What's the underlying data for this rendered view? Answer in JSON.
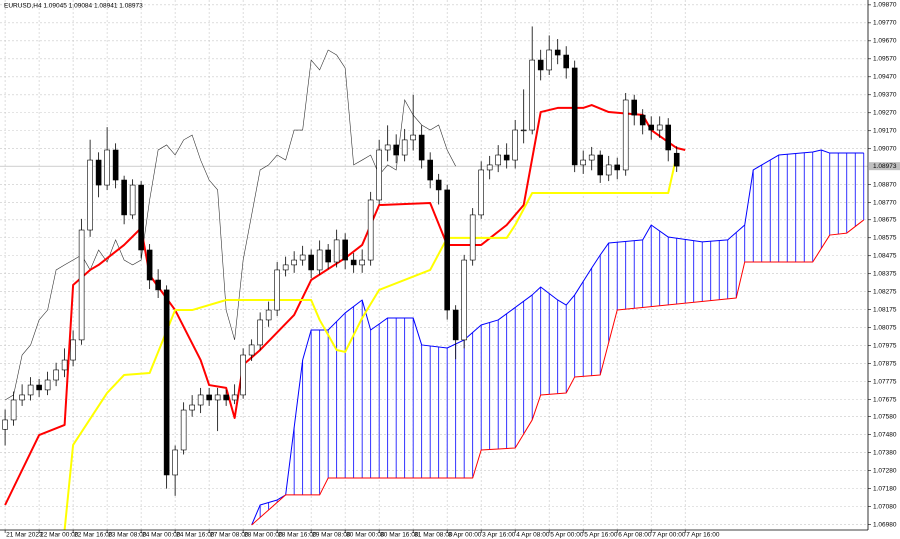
{
  "chart_data": {
    "type": "candlestick",
    "title": "EURUSD,H4 1.09045 1.09084 1.08941 1.08973",
    "xlim": [
      -0.6,
      101.5
    ],
    "ylim": [
      1.0695,
      1.09897
    ],
    "grid": true,
    "up_color": "#ffffff",
    "down_color": "#000000",
    "xticks": [
      {
        "value": 0,
        "label": "21 Mar 2023"
      },
      {
        "value": 4,
        "label": "22 Mar 00:00"
      },
      {
        "value": 8,
        "label": "22 Mar 16:00"
      },
      {
        "value": 12,
        "label": "23 Mar 08:00"
      },
      {
        "value": 16,
        "label": "24 Mar 00:00"
      },
      {
        "value": 20,
        "label": "24 Mar 16:00"
      },
      {
        "value": 24,
        "label": "27 Mar 08:00"
      },
      {
        "value": 28,
        "label": "28 Mar 00:00"
      },
      {
        "value": 32,
        "label": "28 Mar 16:00"
      },
      {
        "value": 36,
        "label": "29 Mar 08:00"
      },
      {
        "value": 40,
        "label": "30 Mar 00:00"
      },
      {
        "value": 44,
        "label": "30 Mar 16:00"
      },
      {
        "value": 48,
        "label": "31 Mar 08:00"
      },
      {
        "value": 52,
        "label": "3 Apr 00:00"
      },
      {
        "value": 56,
        "label": "3 Apr 16:00"
      },
      {
        "value": 60,
        "label": "4 Apr 08:00"
      },
      {
        "value": 64,
        "label": "5 Apr 00:00"
      },
      {
        "value": 68,
        "label": "5 Apr 16:00"
      },
      {
        "value": 72,
        "label": "6 Apr 08:00"
      },
      {
        "value": 76,
        "label": "7 Apr 00:00"
      },
      {
        "value": 80,
        "label": "7 Apr 16:00"
      }
    ],
    "yticks": [
      {
        "value": 1.0987,
        "label": "1.09870"
      },
      {
        "value": 1.0977,
        "label": "1.09770"
      },
      {
        "value": 1.0967,
        "label": "1.09670"
      },
      {
        "value": 1.0957,
        "label": "1.09570"
      },
      {
        "value": 1.0947,
        "label": "1.09470"
      },
      {
        "value": 1.0937,
        "label": "1.09370"
      },
      {
        "value": 1.0927,
        "label": "1.09270"
      },
      {
        "value": 1.0917,
        "label": "1.09170"
      },
      {
        "value": 1.0907,
        "label": "1.09070"
      },
      {
        "value": 1.0887,
        "label": "1.08870"
      },
      {
        "value": 1.0877,
        "label": "1.08770"
      },
      1.08675,
      1.08575,
      1.08475,
      1.08375,
      1.08275,
      1.08175,
      1.08075,
      1.07975,
      1.07875,
      1.07775,
      1.07675,
      {
        "value": 1.0758,
        "label": "1.07580"
      },
      {
        "value": 1.0748,
        "label": "1.07480"
      },
      {
        "value": 1.0738,
        "label": "1.07380"
      },
      {
        "value": 1.0728,
        "label": "1.07280"
      },
      {
        "value": 1.0718,
        "label": "1.07180"
      },
      {
        "value": 1.0708,
        "label": "1.07080"
      },
      {
        "value": 1.0698,
        "label": "1.06980"
      }
    ],
    "current_price": 1.08973,
    "candles": {
      "open": [
        1.0751,
        1.07562,
        1.07673,
        1.07701,
        1.07756,
        1.07729,
        1.07784,
        1.0784,
        1.07895,
        1.08007,
        1.08618,
        1.09007,
        1.08868,
        1.09063,
        1.08896,
        1.08702,
        1.08868,
        1.08507,
        1.0834,
        1.08285,
        1.07256,
        1.07395,
        1.07617,
        1.07645,
        1.07701,
        1.07673,
        1.07701,
        1.07673,
        1.07701,
        1.07923,
        1.07979,
        1.08118,
        1.08173,
        1.08396,
        1.08424,
        1.08451,
        1.08479,
        1.08396,
        1.08507,
        1.0844,
        1.08563,
        1.08451,
        1.08424,
        1.08451,
        1.08785,
        1.09063,
        1.09091,
        1.09035,
        1.09119,
        1.09146,
        1.09007,
        1.08896,
        1.08841,
        1.08173,
        1.08007,
        1.08451,
        1.08702,
        1.08952,
        1.0898,
        1.09035,
        1.09007,
        1.09174,
        1.09174,
        1.09563,
        1.09508,
        1.09619,
        1.09591,
        1.09519,
        1.0898,
        1.09007,
        1.09035,
        1.08924,
        1.0898,
        1.08952,
        1.09341,
        1.09257,
        1.09202,
        1.09174,
        1.09202,
        1.09045
      ],
      "high": [
        1.0762,
        1.0772,
        1.0776,
        1.078,
        1.0779,
        1.0783,
        1.0788,
        1.0796,
        1.0806,
        1.0868,
        1.0912,
        1.0905,
        1.0919,
        1.091,
        1.0892,
        1.089,
        1.0889,
        1.0854,
        1.084,
        1.0831,
        1.0742,
        1.0766,
        1.077,
        1.0774,
        1.0774,
        1.0774,
        1.0773,
        1.0776,
        1.0796,
        1.0801,
        1.0816,
        1.0822,
        1.0844,
        1.0847,
        1.085,
        1.0853,
        1.0851,
        1.0856,
        1.0854,
        1.0862,
        1.086,
        1.0849,
        1.0851,
        1.0883,
        1.0912,
        1.092,
        1.0915,
        1.0918,
        1.0937,
        1.092,
        1.0905,
        1.0893,
        1.0887,
        1.082,
        1.0848,
        1.0874,
        1.09,
        1.0903,
        1.0909,
        1.091,
        1.0923,
        1.094,
        1.0975,
        1.0962,
        1.097,
        1.0968,
        1.0964,
        1.0956,
        1.0906,
        1.0908,
        1.0906,
        1.0903,
        1.0902,
        1.0938,
        1.0937,
        1.0929,
        1.0925,
        1.0925,
        1.0924,
        1.09084
      ],
      "low": [
        1.0742,
        1.0753,
        1.0764,
        1.0767,
        1.0769,
        1.077,
        1.0775,
        1.078,
        1.0786,
        1.0798,
        1.0858,
        1.088,
        1.0884,
        1.0885,
        1.0865,
        1.0868,
        1.0846,
        1.0829,
        1.0824,
        1.0718,
        1.0714,
        1.0737,
        1.0758,
        1.076,
        1.0764,
        1.075,
        1.0764,
        1.0765,
        1.0768,
        1.0789,
        1.0795,
        1.0808,
        1.0814,
        1.0836,
        1.0838,
        1.0842,
        1.0835,
        1.0837,
        1.084,
        1.0841,
        1.084,
        1.0838,
        1.0838,
        1.0842,
        1.0876,
        1.09,
        1.0899,
        1.09,
        1.0906,
        1.0896,
        1.0885,
        1.0876,
        1.0812,
        1.079,
        1.0796,
        1.0842,
        1.0868,
        1.089,
        1.0894,
        1.0896,
        1.0896,
        1.091,
        1.0915,
        1.0945,
        1.0948,
        1.0954,
        1.0946,
        1.0894,
        1.0893,
        1.0895,
        1.0888,
        1.0889,
        1.089,
        1.0892,
        1.092,
        1.0915,
        1.0912,
        1.0913,
        1.09,
        1.08941
      ],
      "close": [
        1.07562,
        1.07673,
        1.07701,
        1.07756,
        1.07729,
        1.07784,
        1.0784,
        1.07895,
        1.08007,
        1.08618,
        1.09007,
        1.08868,
        1.09063,
        1.08896,
        1.08702,
        1.08868,
        1.08507,
        1.0834,
        1.08285,
        1.07256,
        1.07395,
        1.07617,
        1.07645,
        1.07701,
        1.07673,
        1.07701,
        1.07673,
        1.07701,
        1.07923,
        1.07979,
        1.08118,
        1.08173,
        1.08396,
        1.08424,
        1.08451,
        1.08479,
        1.08396,
        1.08507,
        1.0844,
        1.08563,
        1.08451,
        1.08424,
        1.08451,
        1.08785,
        1.09063,
        1.09091,
        1.09035,
        1.09119,
        1.09146,
        1.09007,
        1.08896,
        1.08841,
        1.08173,
        1.08007,
        1.08451,
        1.08702,
        1.08952,
        1.0898,
        1.09035,
        1.09007,
        1.09174,
        1.09174,
        1.09563,
        1.09508,
        1.09619,
        1.09591,
        1.09519,
        1.0898,
        1.09007,
        1.09035,
        1.08924,
        1.0898,
        1.08952,
        1.09341,
        1.09257,
        1.09202,
        1.09174,
        1.09202,
        1.09063,
        1.08973
      ]
    },
    "chikou": {
      "shift": 26,
      "color": "#333333"
    },
    "series": [
      {
        "color": "#ff0000",
        "width": 2,
        "x": [
          0,
          4,
          7,
          8,
          10,
          11,
          14,
          16,
          17,
          20,
          23,
          24,
          26,
          27,
          28,
          30,
          34,
          36,
          40,
          42,
          44,
          50,
          52,
          56,
          59,
          61,
          63,
          65,
          68,
          69,
          71,
          75,
          76,
          79,
          80
        ],
        "values": [
          1.07089,
          1.07478,
          1.07534,
          1.08312,
          1.08396,
          1.08424,
          1.08535,
          1.08629,
          1.08368,
          1.08173,
          1.07895,
          1.07756,
          1.0774,
          1.07573,
          1.07868,
          1.07951,
          1.08146,
          1.0834,
          1.08462,
          1.08535,
          1.08757,
          1.08768,
          1.08535,
          1.08535,
          1.08646,
          1.08757,
          1.09274,
          1.09297,
          1.09297,
          1.09313,
          1.09274,
          1.09258,
          1.09174,
          1.09074,
          1.09063
        ]
      },
      {
        "color": "#ffff00",
        "width": 2,
        "x": [
          7,
          8,
          12,
          14,
          17,
          20,
          22,
          26,
          36,
          37,
          39,
          40,
          42,
          44,
          50,
          52,
          59,
          60,
          62,
          78,
          79
        ],
        "values": [
          1.0695,
          1.07423,
          1.07712,
          1.07812,
          1.07823,
          1.08173,
          1.08173,
          1.08229,
          1.08229,
          1.08118,
          1.07951,
          1.0794,
          1.08129,
          1.08285,
          1.08396,
          1.08574,
          1.08574,
          1.08646,
          1.08824,
          1.08824,
          1.09035
        ]
      }
    ],
    "cloud": {
      "a": {
        "color": "#0000ff",
        "x": [
          29,
          30,
          32,
          33,
          35,
          36,
          38,
          40,
          42,
          43,
          45,
          48,
          49,
          52,
          54,
          56,
          58,
          62,
          63,
          65,
          66,
          67,
          69,
          70,
          71,
          75,
          76,
          78,
          82,
          85,
          87,
          88,
          91,
          95,
          96,
          97,
          101
        ],
        "values": [
          1.06978,
          1.07089,
          1.07117,
          1.07145,
          1.07895,
          1.08062,
          1.08062,
          1.08157,
          1.08229,
          1.08062,
          1.08129,
          1.08129,
          1.07979,
          1.07962,
          1.08007,
          1.0809,
          1.08118,
          1.08257,
          1.08301,
          1.08229,
          1.08201,
          1.08257,
          1.08407,
          1.08479,
          1.08546,
          1.08563,
          1.08646,
          1.08579,
          1.08552,
          1.08563,
          1.08646,
          1.08952,
          1.09035,
          1.09052,
          1.09063,
          1.09046,
          1.09046
        ]
      },
      "b": {
        "color": "#ff0000",
        "x": [
          29,
          33,
          37,
          38,
          55,
          56,
          60,
          62,
          63,
          66,
          67,
          70,
          72,
          86,
          87,
          95,
          97,
          99,
          101
        ],
        "values": [
          1.06978,
          1.07145,
          1.07145,
          1.07239,
          1.07239,
          1.07395,
          1.07406,
          1.07562,
          1.07701,
          1.07712,
          1.07801,
          1.07812,
          1.08173,
          1.0824,
          1.0844,
          1.0844,
          1.0859,
          1.08601,
          1.08674
        ]
      }
    }
  }
}
